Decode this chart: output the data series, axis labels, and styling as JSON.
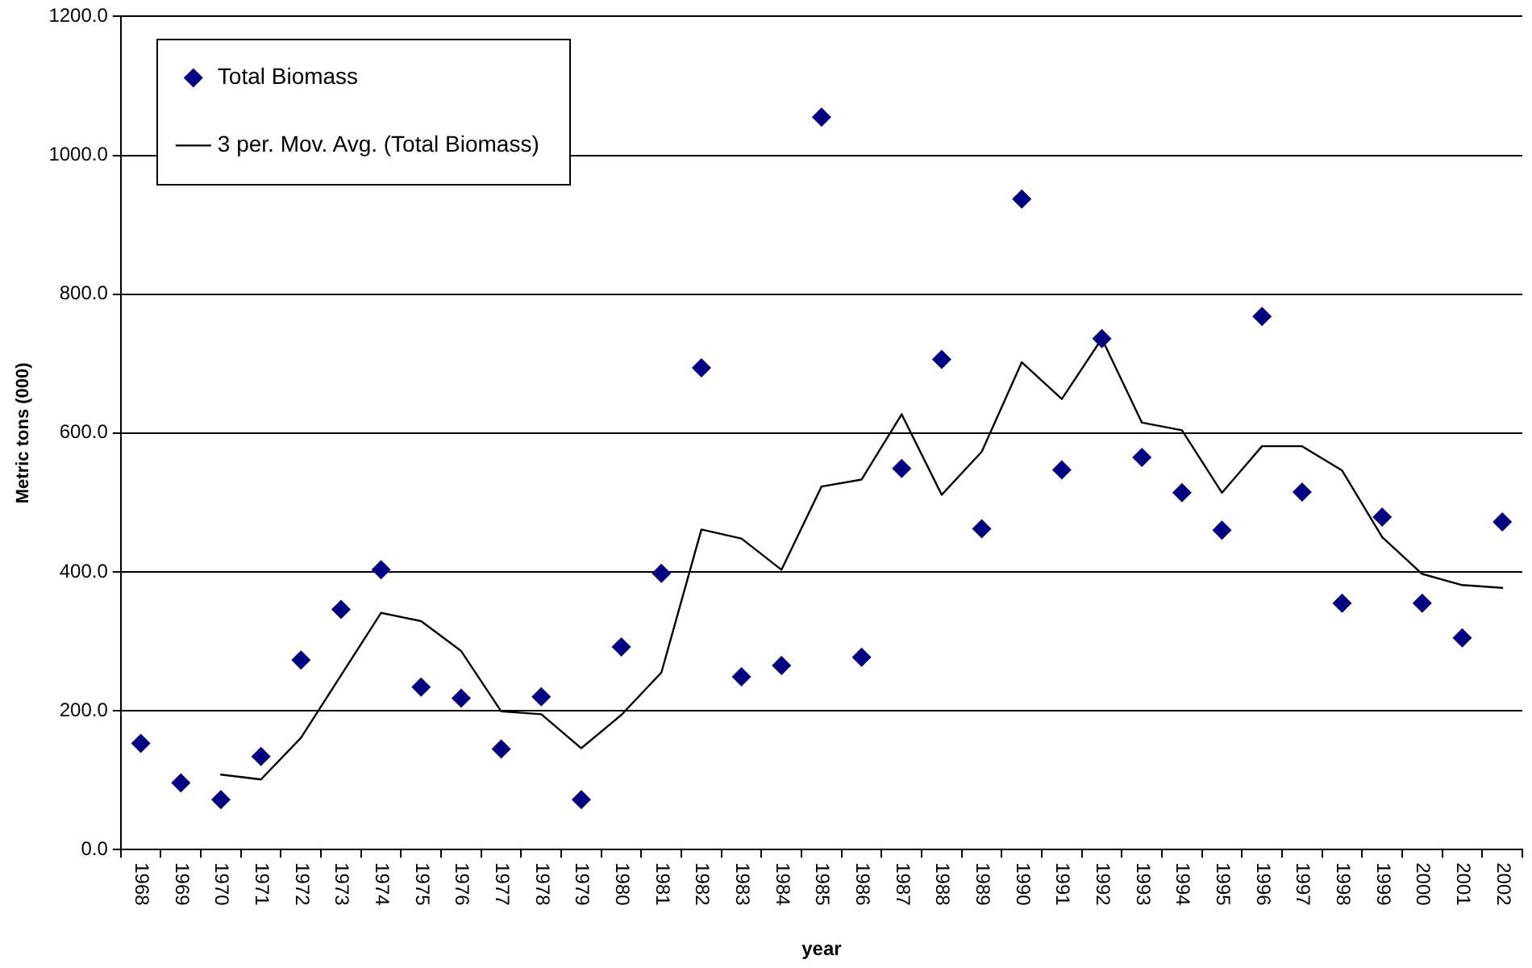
{
  "chart_data": {
    "type": "scatter",
    "xlabel": "year",
    "ylabel": "Metric tons (000)",
    "categories": [
      "1968",
      "1969",
      "1970",
      "1971",
      "1972",
      "1973",
      "1974",
      "1975",
      "1976",
      "1977",
      "1978",
      "1979",
      "1980",
      "1981",
      "1982",
      "1983",
      "1984",
      "1985",
      "1986",
      "1987",
      "1988",
      "1989",
      "1990",
      "1991",
      "1992",
      "1993",
      "1994",
      "1995",
      "1996",
      "1997",
      "1998",
      "1999",
      "2000",
      "2001",
      "2002"
    ],
    "series": [
      {
        "name": "Total Biomass",
        "type": "scatter",
        "color": "#000080",
        "marker": "diamond",
        "values": [
          153,
          96,
          72,
          134,
          273,
          346,
          403,
          234,
          218,
          145,
          220,
          72,
          292,
          398,
          694,
          249,
          265,
          1055,
          277,
          549,
          706,
          462,
          937,
          547,
          736,
          565,
          514,
          460,
          768,
          515,
          355,
          479,
          355,
          305,
          472
        ]
      },
      {
        "name": "3 per. Mov. Avg. (Total Biomass)",
        "type": "line",
        "color": "#000000",
        "marker": "none",
        "line_style": "solid",
        "values": [
          null,
          null,
          108,
          101,
          161,
          251,
          341,
          329,
          286,
          199,
          195,
          146,
          194,
          255,
          461,
          448,
          403,
          523,
          533,
          627,
          511,
          573,
          702,
          649,
          736,
          615,
          604,
          514,
          581,
          581,
          546,
          450,
          397,
          381,
          377
        ]
      }
    ],
    "ylim": [
      0,
      1200
    ],
    "yticks": [
      {
        "value": 0,
        "label": "0.0"
      },
      {
        "value": 200,
        "label": "200.0"
      },
      {
        "value": 400,
        "label": "400.0"
      },
      {
        "value": 600,
        "label": "600.0"
      },
      {
        "value": 800,
        "label": "800.0"
      },
      {
        "value": 1000,
        "label": "1000.0"
      },
      {
        "value": 1200,
        "label": "1200.0"
      }
    ],
    "grid": "y",
    "legend": "top left"
  }
}
